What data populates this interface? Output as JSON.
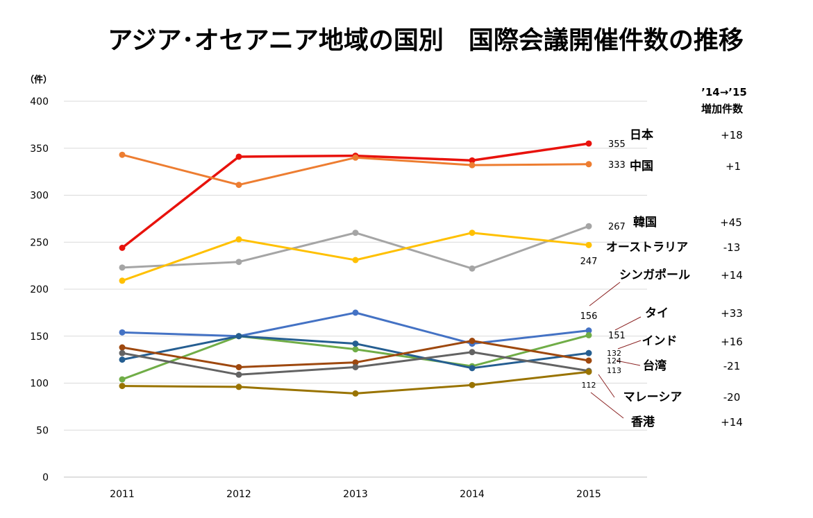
{
  "chart_data": {
    "type": "line",
    "title": "アジア･オセアニア地域の国別　国際会議開催件数の推移",
    "ylabel": "（件）",
    "xlabel": "",
    "categories": [
      "2011",
      "2012",
      "2013",
      "2014",
      "2015"
    ],
    "ylim": [
      0,
      400
    ],
    "yticks": [
      "0",
      "50",
      "100",
      "150",
      "200",
      "250",
      "300",
      "350",
      "400"
    ],
    "grid": true,
    "delta_header": [
      "’14→’15",
      "増加件数"
    ],
    "series": [
      {
        "name": "日本",
        "color": "#e8120c",
        "values": [
          244,
          341,
          342,
          337,
          355
        ],
        "end_label": "355",
        "delta": "+18"
      },
      {
        "name": "中国",
        "color": "#ed7d31",
        "values": [
          343,
          311,
          340,
          332,
          333
        ],
        "end_label": "333",
        "delta": "+1"
      },
      {
        "name": "韓国",
        "color": "#a5a5a5",
        "values": [
          223,
          229,
          260,
          222,
          267
        ],
        "end_label": "267",
        "delta": "+45"
      },
      {
        "name": "オーストラリア",
        "color": "#ffc000",
        "values": [
          209,
          253,
          231,
          260,
          247
        ],
        "end_label": "247",
        "delta": "-13"
      },
      {
        "name": "シンガポール",
        "color": "#4472c4",
        "values": [
          154,
          150,
          175,
          142,
          156
        ],
        "end_label": "156",
        "delta": "+14"
      },
      {
        "name": "タイ",
        "color": "#70ad47",
        "values": [
          104,
          150,
          136,
          118,
          151
        ],
        "end_label": "151",
        "delta": "+33"
      },
      {
        "name": "インド",
        "color": "#255e91",
        "values": [
          125,
          150,
          142,
          116,
          132
        ],
        "end_label": "132",
        "delta": "+16"
      },
      {
        "name": "台湾",
        "color": "#9e480e",
        "values": [
          138,
          117,
          122,
          145,
          124
        ],
        "end_label": "124",
        "delta": "-21"
      },
      {
        "name": "マレーシア",
        "color": "#636363",
        "values": [
          132,
          109,
          117,
          133,
          113
        ],
        "end_label": "113",
        "delta": "-20"
      },
      {
        "name": "香港",
        "color": "#997300",
        "values": [
          97,
          96,
          89,
          98,
          112
        ],
        "end_label": "112",
        "delta": "+14"
      }
    ]
  }
}
